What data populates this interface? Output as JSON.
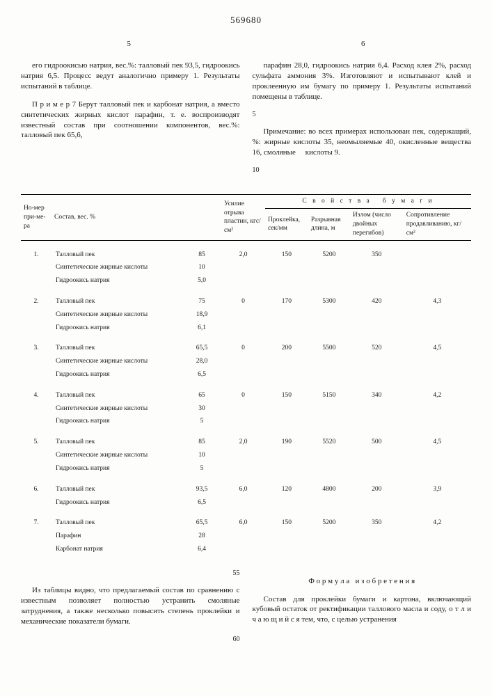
{
  "patent_number": "569680",
  "col_left_num": "5",
  "col_right_num": "6",
  "left_text_1": "его гидроокисью натрия, вес.%: талловый пек 93,5, гидроокись натрия 6,5. Процесс ведут аналогично примеру 1. Результаты испытаний в таблице.",
  "left_text_2": "П р и м е р 7 Берут талловый пек и карбонат натрия, а вместо синтетических жирных кислот парафин, т. е. воспроизводят известный состав при соотношении компонентов, вес.%: талловый пек 65,6,",
  "right_text_1": "парафин 28,0, гидроокись натрия 6,4. Расход клея 2%, расход сульфата аммония 3%. Изготовляют и испытывают клей и проклеенную им бумагу по примеру 1. Результаты испытаний помещены в таблице.",
  "right_text_2": "Примечание: во всех примерах использован пек, содержащий, %: жирные кислоты 35, неомыляемые 40, окисленные вещества 16, смоляные     кислоты 9.",
  "side_5": "5",
  "side_10": "10",
  "table": {
    "headers": {
      "num": "Но-мер при-ме-ра",
      "comp": "Состав, вес. %",
      "force": "Усилие отрыва пластин, кгс/см²",
      "paper_props": "С в о й с т в а   б у м а г и",
      "sub": {
        "sizing": "Проклейка, сек/мм",
        "break": "Разрывная длина, м",
        "fold": "Излом (число двойных перегибов)",
        "burst": "Сопротивление продавливанию, кг/см²"
      }
    },
    "rows": [
      {
        "n": "1.",
        "comp": [
          "Талловый пек",
          "Синтетические жирные кислоты",
          "Гидроокись натрия"
        ],
        "pct": [
          "85",
          "10",
          "5,0"
        ],
        "f": "2,0",
        "s": "150",
        "b": "5200",
        "fo": "350",
        "bu": ""
      },
      {
        "n": "2.",
        "comp": [
          "Талловый пек",
          "Синтетические жирные кислоты",
          "Гидроокись натрия"
        ],
        "pct": [
          "75",
          "18,9",
          "6,1"
        ],
        "f": "0",
        "s": "170",
        "b": "5300",
        "fo": "420",
        "bu": "4,3"
      },
      {
        "n": "3.",
        "comp": [
          "Талловый пек",
          "Синтетические жирные кислоты",
          "Гидроокись натрия"
        ],
        "pct": [
          "65,5",
          "28,0",
          "6,5"
        ],
        "f": "0",
        "s": "200",
        "b": "5500",
        "fo": "520",
        "bu": "4,5"
      },
      {
        "n": "4.",
        "comp": [
          "Талловый пек",
          "Синтетические жирные кислоты",
          "Гидроокись натрия"
        ],
        "pct": [
          "65",
          "30",
          "5"
        ],
        "f": "0",
        "s": "150",
        "b": "5150",
        "fo": "340",
        "bu": "4,2"
      },
      {
        "n": "5.",
        "comp": [
          "Талловый пек",
          "Синтетические жирные кислоты",
          "Гидроокись натрия"
        ],
        "pct": [
          "85",
          "10",
          "5"
        ],
        "f": "2,0",
        "s": "190",
        "b": "5520",
        "fo": "500",
        "bu": "4,5"
      },
      {
        "n": "6.",
        "comp": [
          "Талловый пек",
          "Гидроокись натрия"
        ],
        "pct": [
          "93,5",
          "6,5"
        ],
        "f": "6,0",
        "s": "120",
        "b": "4800",
        "fo": "200",
        "bu": "3,9"
      },
      {
        "n": "7.",
        "comp": [
          "Талловый пек",
          "Парафин",
          "Карбонат натрия"
        ],
        "pct": [
          "65,5",
          "28",
          "6,4"
        ],
        "f": "6,0",
        "s": "150",
        "b": "5200",
        "fo": "350",
        "bu": "4,2"
      }
    ]
  },
  "bottom_left": "Из таблицы видно, что предлагаемый состав по сравнению с известным позволяет полностью устранить смоляные затруднения, а также несколько повысить степень проклейки и механические показатели бумаги.",
  "bottom_right_heading": "Ф о р м у л а   и з о б р е т е н и я",
  "bottom_right": "Состав для проклейки бумаги и картона, включающий кубовый остаток от ректификации таллового масла и соду, о т л и ч а ю щ и й с я  тем, что, с целью устранения",
  "side_55": "55",
  "side_60": "60"
}
